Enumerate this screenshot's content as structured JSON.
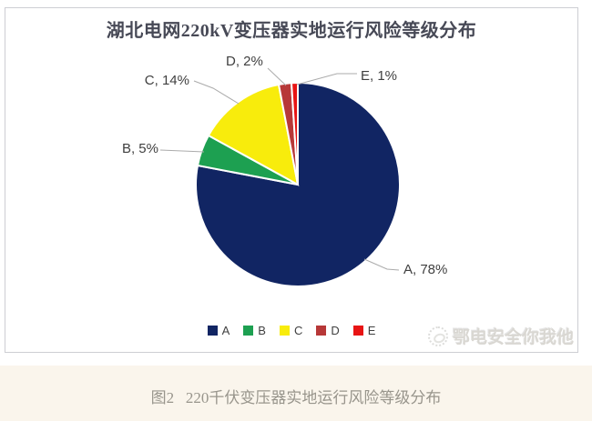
{
  "chart_data": {
    "type": "pie",
    "title": "湖北电网220kV变压器实地运行风险等级分布",
    "categories": [
      "A",
      "B",
      "C",
      "D",
      "E"
    ],
    "values": [
      78,
      5,
      14,
      2,
      1
    ],
    "unit": "%",
    "colors": [
      "#112563",
      "#1da051",
      "#f8ec0c",
      "#b73838",
      "#e81414"
    ],
    "data_labels": [
      "A, 78%",
      "B, 5%",
      "C, 14%",
      "D, 2%",
      "E, 1%"
    ],
    "legend_position": "bottom",
    "legend_entries": [
      "A",
      "B",
      "C",
      "D",
      "E"
    ],
    "start_angle_deg": 0,
    "direction": "clockwise",
    "slice_border_color": "#ffffff",
    "leader_line_color": "#ababab"
  },
  "watermark": {
    "text": "鄂电安全你我他"
  },
  "caption": {
    "text": "图2   220千伏变压器实地运行风险等级分布"
  }
}
